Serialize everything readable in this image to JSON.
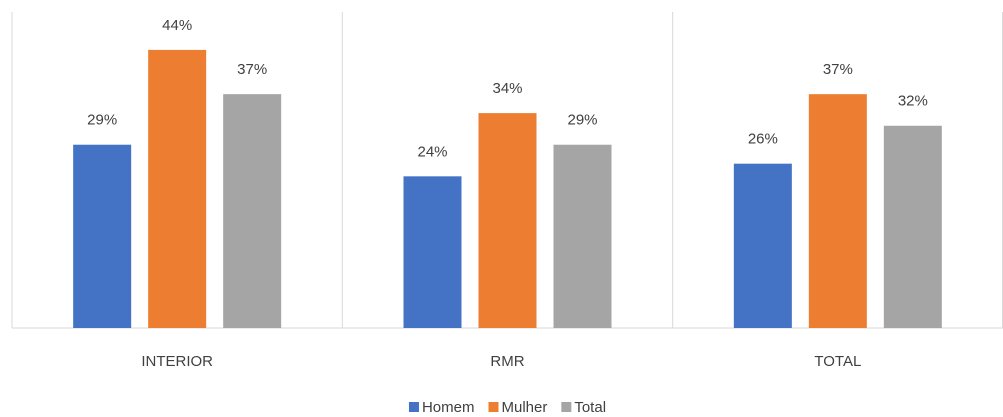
{
  "chart_data": {
    "type": "bar",
    "categories": [
      "INTERIOR",
      "RMR",
      "TOTAL"
    ],
    "series": [
      {
        "name": "Homem",
        "color": "#4472c4",
        "values": [
          29,
          24,
          26
        ],
        "value_labels": [
          "29%",
          "24%",
          "26%"
        ]
      },
      {
        "name": "Mulher",
        "color": "#ed7d31",
        "values": [
          44,
          34,
          37
        ],
        "value_labels": [
          "44%",
          "34%",
          "37%"
        ]
      },
      {
        "name": "Total",
        "color": "#a5a5a5",
        "values": [
          37,
          29,
          32
        ],
        "value_labels": [
          "37%",
          "29%",
          "32%"
        ]
      }
    ],
    "ylim": [
      0,
      50
    ],
    "grid": false,
    "legend": "bottom"
  }
}
